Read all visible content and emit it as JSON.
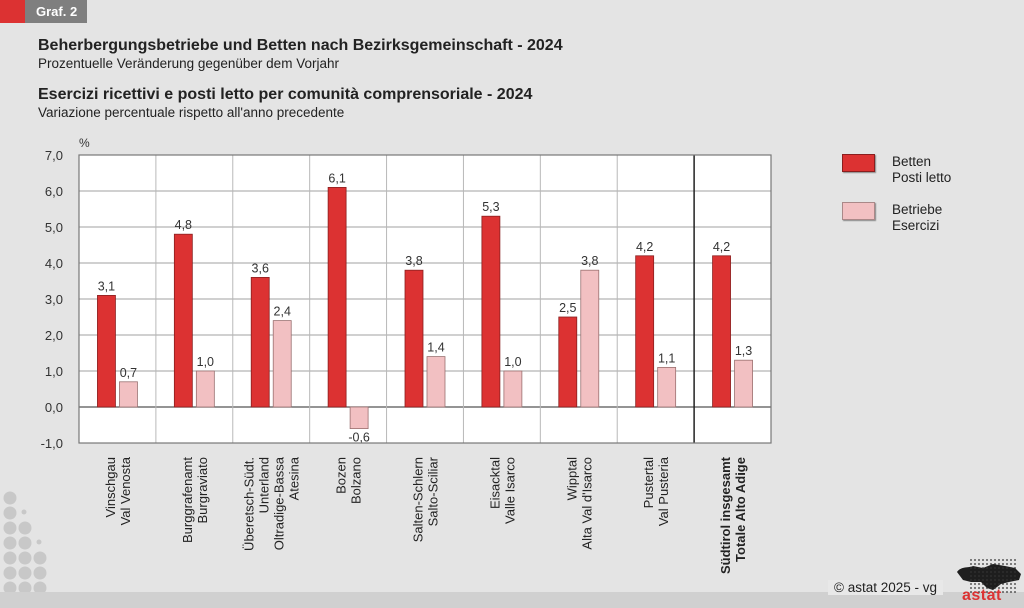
{
  "header": {
    "tag": "Graf. 2",
    "title_de": "Beherbergungsbetriebe und Betten nach Bezirksgemeinschaft - 2024",
    "subtitle_de": "Prozentuelle Veränderung gegenüber dem Vorjahr",
    "title_it": "Esercizi ricettivi e posti letto per comunità comprensoriale - 2024",
    "subtitle_it": "Variazione percentuale rispetto all'anno precedente"
  },
  "footer": {
    "copyright": "©  astat 2025 - vg",
    "logo_text": "astat"
  },
  "colors": {
    "betten": "#dc3232",
    "betriebe": "#f2c0c2",
    "accent": "#dc3232",
    "background": "#e4e4e4"
  },
  "chart_data": {
    "type": "bar",
    "ylabel": "%",
    "ylim": [
      -1.0,
      7.0
    ],
    "yticks": [
      "7,0",
      "6,0",
      "5,0",
      "4,0",
      "3,0",
      "2,0",
      "1,0",
      "0,0",
      "-1,0"
    ],
    "ytick_values": [
      7,
      6,
      5,
      4,
      3,
      2,
      1,
      0,
      -1
    ],
    "grid": true,
    "legend_position": "right",
    "categories": [
      [
        "Vinschgau",
        "Val Venosta"
      ],
      [
        "Burggrafenamt",
        "Burgraviato"
      ],
      [
        "Überetsch-Südt.",
        "Unterland",
        "Oltradige-Bassa",
        "Atesina"
      ],
      [
        "Bozen",
        "Bolzano"
      ],
      [
        "Salten-Schlern",
        "Salto-Sciliar"
      ],
      [
        "Eisacktal",
        "Valle Isarco"
      ],
      [
        "Wipptal",
        "Alta Val d'Isarco"
      ],
      [
        "Pustertal",
        "Val Pusteria"
      ],
      [
        "Südtirol insgesamt",
        "Totale Alto Adige"
      ]
    ],
    "total_category_index": 8,
    "series": [
      {
        "name": "Betten / Posti letto",
        "legend": [
          "Betten",
          "Posti letto"
        ],
        "color": "#dc3232",
        "values": [
          3.1,
          4.8,
          3.6,
          6.1,
          3.8,
          5.3,
          2.5,
          4.2,
          4.2
        ],
        "labels": [
          "3,1",
          "4,8",
          "3,6",
          "6,1",
          "3,8",
          "5,3",
          "2,5",
          "4,2",
          "4,2"
        ]
      },
      {
        "name": "Betriebe / Esercizi",
        "legend": [
          "Betriebe",
          "Esercizi"
        ],
        "color": "#f2c0c2",
        "values": [
          0.7,
          1.0,
          2.4,
          -0.6,
          1.4,
          1.0,
          3.8,
          1.1,
          1.3
        ],
        "labels": [
          "0,7",
          "1,0",
          "2,4",
          "-0,6",
          "1,4",
          "1,0",
          "3,8",
          "1,1",
          "1,3"
        ]
      }
    ]
  }
}
